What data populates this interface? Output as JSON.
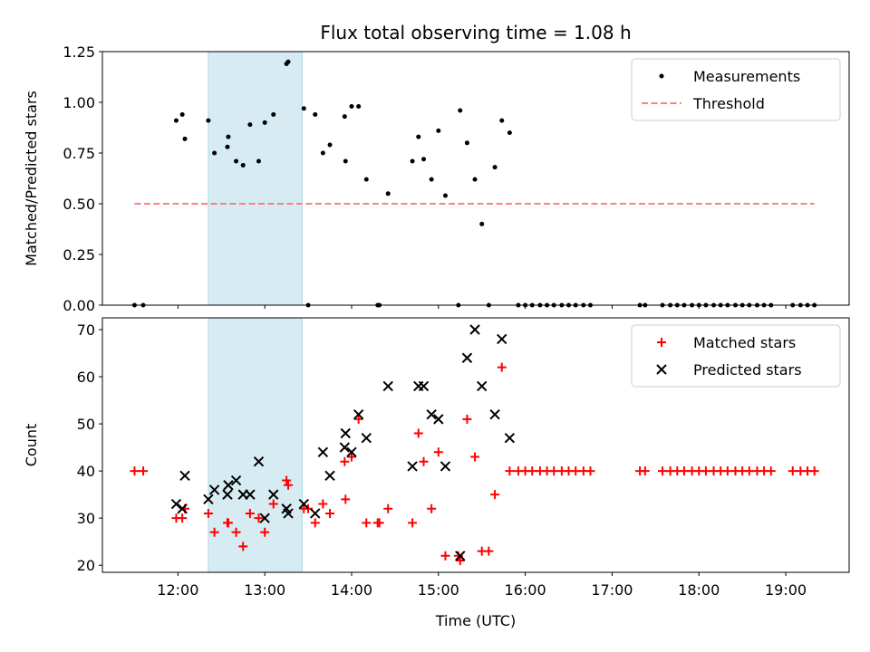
{
  "chart_data": [
    {
      "type": "scatter",
      "title": "Flux total observing time = 1.08 h",
      "xlabel": "",
      "ylabel": "Matched/Predicted stars",
      "xlim": [
        11.13,
        19.73
      ],
      "ylim": [
        0,
        1.25
      ],
      "yticks": [
        0,
        0.25,
        0.5,
        0.75,
        1.0,
        1.25
      ],
      "ytick_labels": [
        "0.00",
        "0.25",
        "0.50",
        "0.75",
        "1.00",
        "1.25"
      ],
      "highlight_span": [
        12.35,
        13.43
      ],
      "legend": {
        "position": "upper right",
        "entries": [
          "Measurements",
          "Threshold"
        ]
      },
      "series": [
        {
          "name": "Measurements",
          "marker": "dot",
          "color": "#000000",
          "points": [
            [
              11.5,
              0
            ],
            [
              11.6,
              0
            ],
            [
              11.98,
              0.91
            ],
            [
              12.05,
              0.94
            ],
            [
              12.08,
              0.82
            ],
            [
              12.35,
              0.91
            ],
            [
              12.42,
              0.75
            ],
            [
              12.57,
              0.78
            ],
            [
              12.58,
              0.83
            ],
            [
              12.67,
              0.71
            ],
            [
              12.75,
              0.69
            ],
            [
              12.83,
              0.89
            ],
            [
              12.93,
              0.71
            ],
            [
              13.0,
              0.9
            ],
            [
              13.1,
              0.94
            ],
            [
              13.25,
              1.19
            ],
            [
              13.27,
              1.2
            ],
            [
              13.45,
              0.97
            ],
            [
              13.5,
              0
            ],
            [
              13.58,
              0.94
            ],
            [
              13.67,
              0.75
            ],
            [
              13.75,
              0.79
            ],
            [
              13.92,
              0.93
            ],
            [
              13.93,
              0.71
            ],
            [
              14.0,
              0.98
            ],
            [
              14.08,
              0.98
            ],
            [
              14.17,
              0.62
            ],
            [
              14.3,
              0
            ],
            [
              14.32,
              0
            ],
            [
              14.42,
              0.55
            ],
            [
              14.7,
              0.71
            ],
            [
              14.77,
              0.83
            ],
            [
              14.83,
              0.72
            ],
            [
              14.92,
              0.62
            ],
            [
              15.0,
              0.86
            ],
            [
              15.08,
              0.54
            ],
            [
              15.23,
              0
            ],
            [
              15.25,
              0.96
            ],
            [
              15.33,
              0.8
            ],
            [
              15.42,
              0.62
            ],
            [
              15.5,
              0.4
            ],
            [
              15.58,
              0
            ],
            [
              15.65,
              0.68
            ],
            [
              15.73,
              0.91
            ],
            [
              15.82,
              0.85
            ],
            [
              15.92,
              0
            ],
            [
              16.0,
              0
            ],
            [
              16.08,
              0
            ],
            [
              16.17,
              0
            ],
            [
              16.25,
              0
            ],
            [
              16.33,
              0
            ],
            [
              16.42,
              0
            ],
            [
              16.5,
              0
            ],
            [
              16.58,
              0
            ],
            [
              16.67,
              0
            ],
            [
              16.75,
              0
            ],
            [
              17.32,
              0
            ],
            [
              17.38,
              0
            ],
            [
              17.58,
              0
            ],
            [
              17.67,
              0
            ],
            [
              17.75,
              0
            ],
            [
              17.83,
              0
            ],
            [
              17.92,
              0
            ],
            [
              18.0,
              0
            ],
            [
              18.08,
              0
            ],
            [
              18.17,
              0
            ],
            [
              18.25,
              0
            ],
            [
              18.33,
              0
            ],
            [
              18.42,
              0
            ],
            [
              18.5,
              0
            ],
            [
              18.58,
              0
            ],
            [
              18.67,
              0
            ],
            [
              18.75,
              0
            ],
            [
              18.83,
              0
            ],
            [
              19.08,
              0
            ],
            [
              19.17,
              0
            ],
            [
              19.25,
              0
            ],
            [
              19.33,
              0
            ]
          ]
        },
        {
          "name": "Threshold",
          "style": "dashed",
          "color": "#ff7f7f",
          "points": [
            [
              11.5,
              0.5
            ],
            [
              19.33,
              0.5
            ]
          ]
        }
      ]
    },
    {
      "type": "scatter",
      "title": "",
      "xlabel": "Time (UTC)",
      "ylabel": "Count",
      "xlim": [
        11.13,
        19.73
      ],
      "ylim": [
        18.5,
        72.5
      ],
      "yticks": [
        20,
        30,
        40,
        50,
        60,
        70
      ],
      "ytick_labels": [
        "20",
        "30",
        "40",
        "50",
        "60",
        "70"
      ],
      "xticks": [
        12,
        13,
        14,
        15,
        16,
        17,
        18,
        19
      ],
      "xtick_labels": [
        "12:00",
        "13:00",
        "14:00",
        "15:00",
        "16:00",
        "17:00",
        "18:00",
        "19:00"
      ],
      "highlight_span": [
        12.35,
        13.43
      ],
      "legend": {
        "position": "upper right",
        "entries": [
          "Matched stars",
          "Predicted stars"
        ]
      },
      "series": [
        {
          "name": "Matched stars",
          "marker": "plus",
          "color": "#ff0000",
          "points": [
            [
              11.5,
              40
            ],
            [
              11.6,
              40
            ],
            [
              11.98,
              30
            ],
            [
              12.05,
              30
            ],
            [
              12.08,
              32
            ],
            [
              12.35,
              31
            ],
            [
              12.42,
              27
            ],
            [
              12.57,
              29
            ],
            [
              12.58,
              29
            ],
            [
              12.67,
              27
            ],
            [
              12.75,
              24
            ],
            [
              12.83,
              31
            ],
            [
              12.93,
              30
            ],
            [
              13.0,
              27
            ],
            [
              13.1,
              33
            ],
            [
              13.25,
              38
            ],
            [
              13.27,
              37
            ],
            [
              13.45,
              32
            ],
            [
              13.5,
              32
            ],
            [
              13.58,
              29
            ],
            [
              13.67,
              33
            ],
            [
              13.75,
              31
            ],
            [
              13.92,
              42
            ],
            [
              13.93,
              34
            ],
            [
              14.0,
              43
            ],
            [
              14.08,
              51
            ],
            [
              14.17,
              29
            ],
            [
              14.3,
              29
            ],
            [
              14.32,
              29
            ],
            [
              14.42,
              32
            ],
            [
              14.7,
              29
            ],
            [
              14.77,
              48
            ],
            [
              14.83,
              42
            ],
            [
              14.92,
              32
            ],
            [
              15.0,
              44
            ],
            [
              15.08,
              22
            ],
            [
              15.23,
              22
            ],
            [
              15.25,
              21
            ],
            [
              15.33,
              51
            ],
            [
              15.42,
              43
            ],
            [
              15.5,
              23
            ],
            [
              15.58,
              23
            ],
            [
              15.65,
              35
            ],
            [
              15.73,
              62
            ],
            [
              15.82,
              40
            ],
            [
              15.92,
              40
            ],
            [
              16.0,
              40
            ],
            [
              16.08,
              40
            ],
            [
              16.17,
              40
            ],
            [
              16.25,
              40
            ],
            [
              16.33,
              40
            ],
            [
              16.42,
              40
            ],
            [
              16.5,
              40
            ],
            [
              16.58,
              40
            ],
            [
              16.67,
              40
            ],
            [
              16.75,
              40
            ],
            [
              17.32,
              40
            ],
            [
              17.38,
              40
            ],
            [
              17.58,
              40
            ],
            [
              17.67,
              40
            ],
            [
              17.75,
              40
            ],
            [
              17.83,
              40
            ],
            [
              17.92,
              40
            ],
            [
              18.0,
              40
            ],
            [
              18.08,
              40
            ],
            [
              18.17,
              40
            ],
            [
              18.25,
              40
            ],
            [
              18.33,
              40
            ],
            [
              18.42,
              40
            ],
            [
              18.5,
              40
            ],
            [
              18.58,
              40
            ],
            [
              18.67,
              40
            ],
            [
              18.75,
              40
            ],
            [
              18.83,
              40
            ],
            [
              19.08,
              40
            ],
            [
              19.17,
              40
            ],
            [
              19.25,
              40
            ],
            [
              19.33,
              40
            ]
          ]
        },
        {
          "name": "Predicted stars",
          "marker": "x",
          "color": "#000000",
          "points": [
            [
              11.98,
              33
            ],
            [
              12.05,
              32
            ],
            [
              12.08,
              39
            ],
            [
              12.35,
              34
            ],
            [
              12.42,
              36
            ],
            [
              12.57,
              35
            ],
            [
              12.58,
              37
            ],
            [
              12.67,
              38
            ],
            [
              12.75,
              35
            ],
            [
              12.83,
              35
            ],
            [
              12.93,
              42
            ],
            [
              13.0,
              30
            ],
            [
              13.1,
              35
            ],
            [
              13.25,
              32
            ],
            [
              13.27,
              31
            ],
            [
              13.45,
              33
            ],
            [
              13.58,
              31
            ],
            [
              13.67,
              44
            ],
            [
              13.75,
              39
            ],
            [
              13.92,
              45
            ],
            [
              13.93,
              48
            ],
            [
              14.0,
              44
            ],
            [
              14.08,
              52
            ],
            [
              14.17,
              47
            ],
            [
              14.42,
              58
            ],
            [
              14.7,
              41
            ],
            [
              14.77,
              58
            ],
            [
              14.83,
              58
            ],
            [
              14.92,
              52
            ],
            [
              15.0,
              51
            ],
            [
              15.08,
              41
            ],
            [
              15.25,
              22
            ],
            [
              15.33,
              64
            ],
            [
              15.42,
              70
            ],
            [
              15.5,
              58
            ],
            [
              15.65,
              52
            ],
            [
              15.73,
              68
            ],
            [
              15.82,
              47
            ]
          ]
        }
      ]
    }
  ]
}
